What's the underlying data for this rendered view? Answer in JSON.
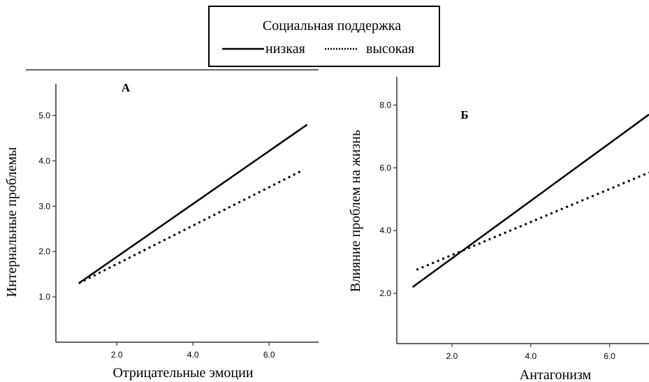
{
  "legend": {
    "title": "Социальная поддержка",
    "entries": [
      {
        "label": "низкая",
        "style": "solid"
      },
      {
        "label": "высокая",
        "style": "dotted"
      }
    ]
  },
  "chart_data": [
    {
      "type": "line",
      "title": "А",
      "xlabel": "Отрицательные эмоции",
      "ylabel": "Интернальные проблемы",
      "xlim": [
        0.4,
        7.3
      ],
      "ylim": [
        0.0,
        5.7
      ],
      "xticks": [
        "2.0",
        "4.0",
        "6.0"
      ],
      "yticks": [
        "1.0",
        "2.0",
        "3.0",
        "4.0",
        "5.0"
      ],
      "series": [
        {
          "name": "низкая",
          "style": "solid",
          "x": [
            1.0,
            7.0
          ],
          "y": [
            1.3,
            4.8
          ]
        },
        {
          "name": "высокая",
          "style": "dotted",
          "x": [
            1.0,
            6.9
          ],
          "y": [
            1.3,
            3.8
          ]
        }
      ]
    },
    {
      "type": "line",
      "title": "Б",
      "xlabel": "Антагонизм",
      "ylabel": "Влияние проблем на жизнь",
      "xlim": [
        0.6,
        7.0
      ],
      "ylim": [
        0.4,
        8.9
      ],
      "xticks": [
        "2.0",
        "4.0",
        "6.0"
      ],
      "yticks": [
        "2.0",
        "4.0",
        "6.0",
        "8.0"
      ],
      "series": [
        {
          "name": "низкая",
          "style": "solid",
          "x": [
            1.0,
            7.0
          ],
          "y": [
            2.2,
            7.7
          ]
        },
        {
          "name": "высокая",
          "style": "dotted",
          "x": [
            1.1,
            7.0
          ],
          "y": [
            2.75,
            5.85
          ]
        }
      ]
    }
  ],
  "colors": {
    "line": "#000000",
    "axis": "#333333",
    "background": "#ffffff"
  }
}
